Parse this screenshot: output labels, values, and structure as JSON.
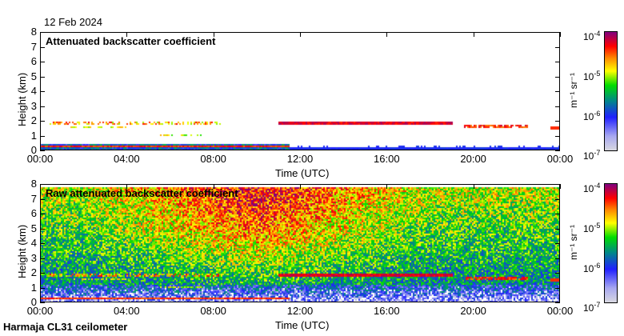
{
  "date": "12 Feb 2024",
  "footer": "Harmaja CL31 ceilometer",
  "chart_data": [
    {
      "type": "heatmap",
      "title": "Attenuated backscatter coefficient",
      "xlabel": "Time (UTC)",
      "ylabel": "Height (km)",
      "xticks": [
        "00:00",
        "04:00",
        "08:00",
        "12:00",
        "16:00",
        "20:00",
        "00:00"
      ],
      "yticks": [
        "0",
        "1",
        "2",
        "3",
        "4",
        "5",
        "6",
        "7",
        "8"
      ],
      "ylim": [
        0,
        8
      ],
      "xlim_hours": [
        0,
        24
      ],
      "colorbar": {
        "label": "m-1 sr-1",
        "ticks": [
          "10-4",
          "10-5",
          "10-6",
          "10-7"
        ],
        "scale": "log",
        "range": [
          1e-07,
          0.0001
        ]
      },
      "features": [
        {
          "name": "surface layer",
          "start_h": 0,
          "end_h": 11.5,
          "height_km": [
            0,
            0.5
          ]
        },
        {
          "name": "cloud layer",
          "start_h": 0.3,
          "end_h": 8.3,
          "height_km": 1.9
        },
        {
          "name": "cloud layer",
          "start_h": 11.0,
          "end_h": 19.0,
          "height_km": 1.85
        },
        {
          "name": "cloud layer",
          "start_h": 19.5,
          "end_h": 22.5,
          "height_km": 1.7
        },
        {
          "name": "cloud layer",
          "start_h": 23.5,
          "end_h": 24,
          "height_km": 1.6
        }
      ]
    },
    {
      "type": "heatmap",
      "title": "Raw attenuated backscatter coefficient",
      "xlabel": "Time (UTC)",
      "ylabel": "Height (km)",
      "xticks": [
        "00:00",
        "04:00",
        "08:00",
        "12:00",
        "16:00",
        "20:00",
        "00:00"
      ],
      "yticks": [
        "0",
        "1",
        "2",
        "3",
        "4",
        "5",
        "6",
        "7",
        "8"
      ],
      "ylim": [
        0,
        8
      ],
      "xlim_hours": [
        0,
        24
      ],
      "colorbar": {
        "label": "m-1 sr-1",
        "ticks": [
          "10-4",
          "10-5",
          "10-6",
          "10-7"
        ],
        "scale": "log",
        "range": [
          1e-07,
          0.0001
        ]
      }
    }
  ],
  "colorbar_ticks": [
    {
      "base": "10",
      "exp": "-4"
    },
    {
      "base": "10",
      "exp": "-5"
    },
    {
      "base": "10",
      "exp": "-6"
    },
    {
      "base": "10",
      "exp": "-7"
    }
  ],
  "unit_label": "m⁻¹ sr⁻¹"
}
